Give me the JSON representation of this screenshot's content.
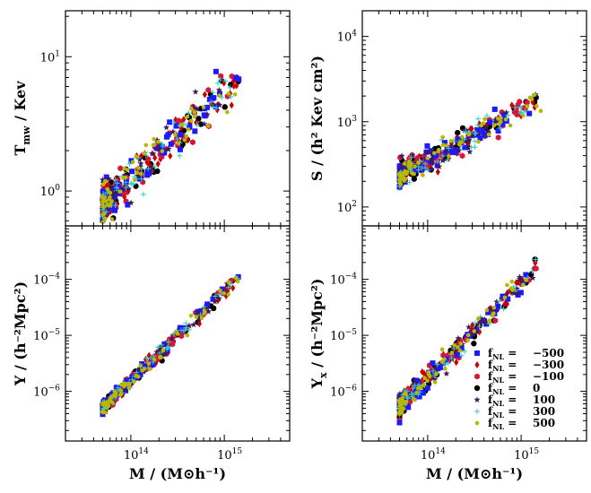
{
  "chart_data": [
    {
      "id": "tmw",
      "type": "scatter",
      "xscale": "log",
      "yscale": "log",
      "xlim": [
        20000000000000.0,
        5000000000000000.0
      ],
      "ylim": [
        0.55,
        22
      ],
      "ylabel": "T_mw / Kev",
      "xlabel": "",
      "yticks": [
        {
          "value": 1.0,
          "label": "10^0"
        },
        {
          "value": 10.0,
          "label": "10^1"
        }
      ],
      "xticks": [],
      "trend": {
        "x0": 50000000000000.0,
        "y0": 0.78,
        "x1": 1800000000000000.0,
        "y1": 8.2,
        "scatter": 0.07
      },
      "legend": false
    },
    {
      "id": "entropy",
      "type": "scatter",
      "xscale": "log",
      "yscale": "log",
      "xlim": [
        20000000000000.0,
        5000000000000000.0
      ],
      "ylim": [
        60,
        20000
      ],
      "ylabel": "S / (h² Kev cm²)",
      "xlabel": "",
      "yticks": [
        {
          "value": 100,
          "label": "10^2"
        },
        {
          "value": 1000,
          "label": "10^3"
        },
        {
          "value": 10000,
          "label": "10^4"
        }
      ],
      "xticks": [],
      "trend": {
        "x0": 50000000000000.0,
        "y0": 230,
        "x1": 1800000000000000.0,
        "y1": 2000,
        "scatter": 0.07
      },
      "legend": false
    },
    {
      "id": "ysz",
      "type": "scatter",
      "xscale": "log",
      "yscale": "log",
      "xlim": [
        20000000000000.0,
        5000000000000000.0
      ],
      "ylim": [
        1.3e-07,
        0.0009
      ],
      "ylabel": "Y / (h⁻²Mpc²)",
      "xlabel": "M / (M⊙h⁻¹)",
      "yticks": [
        {
          "value": 1e-06,
          "label": "10^−6"
        },
        {
          "value": 1e-05,
          "label": "10^−5"
        },
        {
          "value": 0.0001,
          "label": "10^−4"
        }
      ],
      "xticks": [
        {
          "value": 100000000000000.0,
          "label": "10^14"
        },
        {
          "value": 1000000000000000.0,
          "label": "10^15"
        }
      ],
      "trend": {
        "x0": 50000000000000.0,
        "y0": 5e-07,
        "x1": 1800000000000000.0,
        "y1": 0.00016,
        "scatter": 0.06
      },
      "legend": false
    },
    {
      "id": "yx",
      "type": "scatter",
      "xscale": "log",
      "yscale": "log",
      "xlim": [
        20000000000000.0,
        5000000000000000.0
      ],
      "ylim": [
        1.3e-07,
        0.0009
      ],
      "ylabel": "Y_x / (h⁻²Mpc²)",
      "xlabel": "M / (M⊙h⁻¹)",
      "yticks": [
        {
          "value": 1e-06,
          "label": "10^−6"
        },
        {
          "value": 1e-05,
          "label": "10^−5"
        },
        {
          "value": 0.0001,
          "label": "10^−4"
        }
      ],
      "xticks": [
        {
          "value": 100000000000000.0,
          "label": "10^14"
        },
        {
          "value": 1000000000000000.0,
          "label": "10^15"
        }
      ],
      "trend": {
        "x0": 50000000000000.0,
        "y0": 5.5e-07,
        "x1": 1800000000000000.0,
        "y1": 0.00022,
        "scatter": 0.09
      },
      "legend": true
    }
  ],
  "legend": {
    "placement": "lower-right",
    "entries": [
      {
        "label": "f_NL = −500",
        "sub": "NL",
        "value": "−500",
        "marker": "square",
        "color": "#1a1aff"
      },
      {
        "label": "f_NL = −300",
        "sub": "NL",
        "value": "−300",
        "marker": "diamond",
        "color": "#cc0000"
      },
      {
        "label": "f_NL = −100",
        "sub": "NL",
        "value": "−100",
        "marker": "hexagon",
        "color": "#d4183c"
      },
      {
        "label": "f_NL = 0",
        "sub": "NL",
        "value": "0",
        "marker": "circle",
        "color": "#000000"
      },
      {
        "label": "f_NL = 100",
        "sub": "NL",
        "value": "100",
        "marker": "star",
        "color": "#3d1a5c"
      },
      {
        "label": "f_NL = 300",
        "sub": "NL",
        "value": "300",
        "marker": "plus",
        "color": "#33cccc"
      },
      {
        "label": "f_NL = 500",
        "sub": "NL",
        "value": "500",
        "marker": "dot",
        "color": "#b8b800"
      }
    ]
  }
}
